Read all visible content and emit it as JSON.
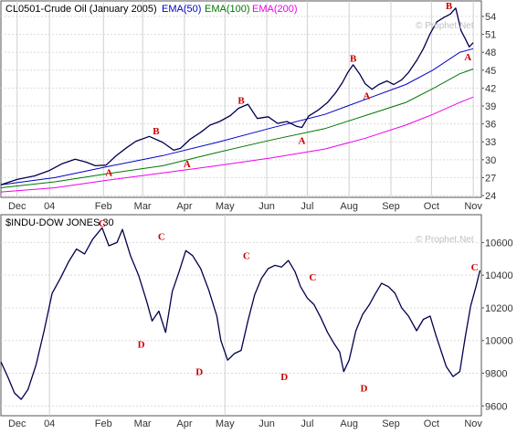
{
  "chart_data": [
    {
      "type": "line",
      "legend": [
        {
          "text": "CL0501-Crude Oil (January 2005)",
          "color": "#000000"
        },
        {
          "text": "EMA(50)",
          "color": "#0000cc"
        },
        {
          "text": "EMA(100)",
          "color": "#007700"
        },
        {
          "text": "EMA(200)",
          "color": "#ee00ee"
        }
      ],
      "watermark": "© Prophet.Net",
      "months": [
        {
          "label": "Dec",
          "day": 12
        },
        {
          "label": "04",
          "day": 36
        },
        {
          "label": "Feb",
          "day": 76
        },
        {
          "label": "Mar",
          "day": 105
        },
        {
          "label": "Apr",
          "day": 136
        },
        {
          "label": "May",
          "day": 166
        },
        {
          "label": "Jun",
          "day": 197
        },
        {
          "label": "Jul",
          "day": 227
        },
        {
          "label": "Aug",
          "day": 258
        },
        {
          "label": "Sep",
          "day": 289
        },
        {
          "label": "Oct",
          "day": 319
        },
        {
          "label": "Nov",
          "day": 350
        }
      ],
      "gridlines": [
        12,
        36,
        76,
        105,
        136,
        166,
        197,
        227,
        258,
        289,
        319,
        350
      ],
      "xlim": [
        0,
        356
      ],
      "ylim": [
        23.7,
        56.6
      ],
      "yticks": [
        24,
        27,
        30,
        33,
        36,
        39,
        42,
        45,
        48,
        51,
        54
      ],
      "price": {
        "name": "CL0501-Crude Oil (January 2005)",
        "x": [
          0,
          12,
          25,
          36,
          45,
          55,
          63,
          70,
          78,
          85,
          93,
          100,
          110,
          120,
          128,
          133,
          140,
          148,
          155,
          162,
          170,
          176,
          183,
          190,
          198,
          205,
          212,
          219,
          223,
          228,
          235,
          242,
          248,
          253,
          257,
          261,
          266,
          270,
          275,
          280,
          286,
          291,
          297,
          302,
          308,
          313,
          318,
          323,
          328,
          333,
          337,
          341,
          344,
          347,
          350
        ],
        "y": [
          25.8,
          26.7,
          27.3,
          28.2,
          29.3,
          30.1,
          29.6,
          29.0,
          29.1,
          30.6,
          32.0,
          33.1,
          33.9,
          32.9,
          31.6,
          31.9,
          33.4,
          34.6,
          35.8,
          36.4,
          37.4,
          38.6,
          39.3,
          36.9,
          37.2,
          36.1,
          36.4,
          35.6,
          35.4,
          37.3,
          38.3,
          39.6,
          41.2,
          42.9,
          44.6,
          45.9,
          44.3,
          42.7,
          41.8,
          42.6,
          43.2,
          42.6,
          43.4,
          44.6,
          46.6,
          48.6,
          51.1,
          53.1,
          53.8,
          54.4,
          55.4,
          51.6,
          50.3,
          48.9,
          49.6
        ]
      },
      "ema50": {
        "name": "EMA(50)",
        "x": [
          0,
          40,
          80,
          120,
          160,
          200,
          240,
          270,
          300,
          320,
          340,
          350
        ],
        "y": [
          25.8,
          27.0,
          28.9,
          30.7,
          32.9,
          35.3,
          37.6,
          40.1,
          42.6,
          45.0,
          48.0,
          48.6
        ]
      },
      "ema100": {
        "name": "EMA(100)",
        "x": [
          0,
          40,
          80,
          120,
          160,
          200,
          240,
          270,
          300,
          320,
          340,
          350
        ],
        "y": [
          25.3,
          26.3,
          27.7,
          29.0,
          31.2,
          33.3,
          35.2,
          37.4,
          39.6,
          41.9,
          44.4,
          45.2
        ]
      },
      "ema200": {
        "name": "EMA(200)",
        "x": [
          0,
          40,
          80,
          120,
          160,
          200,
          240,
          270,
          300,
          320,
          340,
          350
        ],
        "y": [
          24.6,
          25.3,
          26.6,
          27.8,
          29.0,
          30.3,
          31.8,
          33.6,
          35.8,
          37.6,
          39.6,
          40.5
        ]
      },
      "annotations": [
        {
          "text": "A",
          "x": 80,
          "y": 27.9
        },
        {
          "text": "B",
          "x": 115,
          "y": 34.9
        },
        {
          "text": "A",
          "x": 138,
          "y": 29.4
        },
        {
          "text": "B",
          "x": 178,
          "y": 40.0
        },
        {
          "text": "A",
          "x": 223,
          "y": 33.3
        },
        {
          "text": "B",
          "x": 261,
          "y": 47.0
        },
        {
          "text": "A",
          "x": 271,
          "y": 40.8
        },
        {
          "text": "B",
          "x": 332,
          "y": 55.8
        },
        {
          "text": "A",
          "x": 346,
          "y": 47.3
        }
      ]
    },
    {
      "type": "line",
      "legend": [
        {
          "text": "$INDU-DOW JONES 30",
          "color": "#000000"
        }
      ],
      "watermark": "© Prophet.Net",
      "months": [
        {
          "label": "Dec",
          "day": 12
        },
        {
          "label": "04",
          "day": 36
        },
        {
          "label": "Feb",
          "day": 76
        },
        {
          "label": "Mar",
          "day": 105
        },
        {
          "label": "Apr",
          "day": 136
        },
        {
          "label": "May",
          "day": 166
        },
        {
          "label": "Jun",
          "day": 197
        },
        {
          "label": "Jul",
          "day": 227
        },
        {
          "label": "Aug",
          "day": 258
        },
        {
          "label": "Sep",
          "day": 289
        },
        {
          "label": "Oct",
          "day": 319
        },
        {
          "label": "Nov",
          "day": 350
        }
      ],
      "gridlines": [
        36,
        166
      ],
      "xlim": [
        0,
        356
      ],
      "ylim": [
        9540,
        10770
      ],
      "yticks": [
        9600,
        9800,
        10000,
        10200,
        10400,
        10600
      ],
      "price": {
        "name": "$INDU-DOW JONES 30",
        "x": [
          0,
          5,
          10,
          15,
          20,
          26,
          32,
          38,
          44,
          50,
          56,
          62,
          68,
          75,
          80,
          86,
          90,
          96,
          102,
          108,
          112,
          117,
          122,
          127,
          132,
          137,
          142,
          148,
          154,
          160,
          163,
          168,
          173,
          178,
          183,
          188,
          193,
          198,
          203,
          208,
          213,
          218,
          222,
          227,
          232,
          237,
          242,
          247,
          251,
          254,
          258,
          263,
          268,
          273,
          277,
          282,
          287,
          292,
          297,
          302,
          308,
          313,
          318,
          322,
          326,
          330,
          335,
          340,
          344,
          348,
          352,
          355
        ],
        "y": [
          9870,
          9780,
          9680,
          9640,
          9700,
          9850,
          10060,
          10290,
          10380,
          10480,
          10560,
          10530,
          10620,
          10690,
          10580,
          10600,
          10680,
          10520,
          10400,
          10240,
          10120,
          10180,
          10050,
          10300,
          10420,
          10550,
          10520,
          10440,
          10310,
          10150,
          10000,
          9880,
          9920,
          9940,
          10120,
          10280,
          10380,
          10440,
          10460,
          10450,
          10490,
          10420,
          10330,
          10260,
          10220,
          10140,
          10050,
          9980,
          9930,
          9810,
          9880,
          10060,
          10160,
          10220,
          10280,
          10350,
          10330,
          10290,
          10200,
          10150,
          10060,
          10130,
          10150,
          10040,
          9940,
          9840,
          9780,
          9810,
          10020,
          10210,
          10330,
          10430
        ]
      },
      "annotations": [
        {
          "text": "C",
          "x": 75,
          "y": 10720
        },
        {
          "text": "D",
          "x": 104,
          "y": 9980
        },
        {
          "text": "C",
          "x": 119,
          "y": 10640
        },
        {
          "text": "D",
          "x": 147,
          "y": 9810
        },
        {
          "text": "C",
          "x": 182,
          "y": 10520
        },
        {
          "text": "D",
          "x": 210,
          "y": 9780
        },
        {
          "text": "C",
          "x": 231,
          "y": 10390
        },
        {
          "text": "D",
          "x": 269,
          "y": 9710
        },
        {
          "text": "C",
          "x": 351,
          "y": 10450
        }
      ]
    }
  ]
}
